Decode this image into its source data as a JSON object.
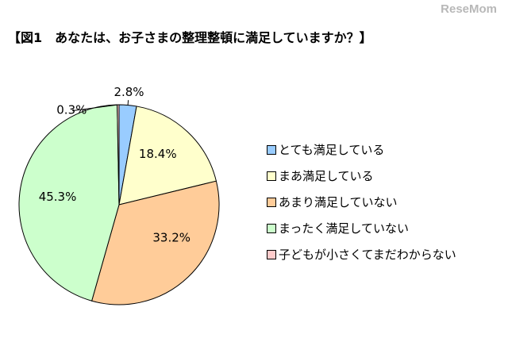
{
  "brand": "ReseMom",
  "chart_data": {
    "type": "pie",
    "title": "【図1　あなたは、お子さまの整理整頓に満足していますか？】",
    "slices": [
      {
        "label": "とても満足している",
        "value": 2.8,
        "display": "2.8%",
        "color": "#99CCFF"
      },
      {
        "label": "まあ満足している",
        "value": 18.4,
        "display": "18.4%",
        "color": "#FFFFCC"
      },
      {
        "label": "あまり満足していない",
        "value": 33.2,
        "display": "33.2%",
        "color": "#FFCC99"
      },
      {
        "label": "まったく満足していない",
        "value": 45.3,
        "display": "45.3%",
        "color": "#CCFFCC"
      },
      {
        "label": "子どもが小さくてまだわからない",
        "value": 0.3,
        "display": "0.3%",
        "color": "#FFCCCC"
      }
    ],
    "legend_position": "right"
  }
}
